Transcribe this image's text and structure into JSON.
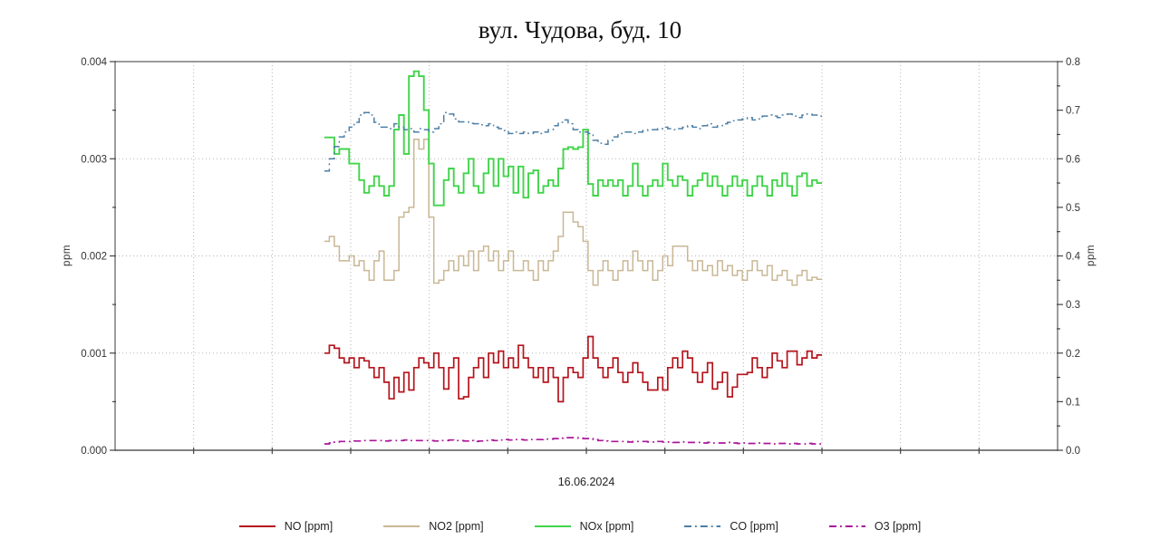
{
  "title": "вул. Чудова, буд. 10",
  "date_label": "16.06.2024",
  "y_axis_left": {
    "label": "ppm",
    "min": 0,
    "max": 0.004,
    "tick_labels": [
      "0.000",
      "0.001",
      "0.002",
      "0.003",
      "0.004"
    ]
  },
  "y_axis_right": {
    "label": "ppm",
    "min": 0,
    "max": 0.8,
    "tick_labels": [
      "0.0",
      "0.1",
      "0.2",
      "0.3",
      "0.4",
      "0.5",
      "0.6",
      "0.7",
      "0.8"
    ]
  },
  "legend": {
    "items": [
      {
        "label": "NO [ppm]"
      },
      {
        "label": "NO2 [ppm]"
      },
      {
        "label": "NOx [ppm]"
      },
      {
        "label": "CO [ppm]"
      },
      {
        "label": "O3 [ppm]"
      }
    ]
  },
  "colors": {
    "no": "#b5141c",
    "no2": "#c9b795",
    "nox": "#41d44a",
    "co": "#4d7fa5",
    "o3": "#ab169b",
    "grid": "#b5b5b5",
    "axis": "#666666",
    "tick_text": "#333333"
  },
  "chart_data": {
    "type": "line",
    "title": "вул. Чудова, буд. 10",
    "x_label": "16.06.2024",
    "grid": "dotted",
    "legend_position": "bottom",
    "x_axis_divisions": 12,
    "x_data_start_frac": 0.222,
    "x_data_end_frac": 0.75,
    "left_axis": {
      "label": "ppm",
      "range": [
        0,
        0.004
      ],
      "gridlines": [
        0.001,
        0.002,
        0.003
      ]
    },
    "right_axis": {
      "label": "ppm",
      "range": [
        0,
        0.8
      ],
      "gridlines": [
        0.2,
        0.4,
        0.6
      ]
    },
    "series": [
      {
        "name": "NO [ppm]",
        "axis": "left",
        "color": "#b5141c",
        "style": "solid",
        "width": 1.7,
        "values": [
          0.001,
          0.00108,
          0.00105,
          0.00095,
          0.0009,
          0.00095,
          0.00085,
          0.00095,
          0.00092,
          0.00085,
          0.00075,
          0.00085,
          0.0007,
          0.00053,
          0.00075,
          0.0006,
          0.0008,
          0.00062,
          0.00085,
          0.00095,
          0.0009,
          0.00085,
          0.001,
          0.00085,
          0.00063,
          0.00085,
          0.00095,
          0.00053,
          0.00055,
          0.00075,
          0.00085,
          0.00095,
          0.00075,
          0.001,
          0.0009,
          0.00102,
          0.00085,
          0.00095,
          0.00085,
          0.00108,
          0.00095,
          0.00085,
          0.00075,
          0.00085,
          0.0007,
          0.00085,
          0.00075,
          0.0005,
          0.00075,
          0.00085,
          0.0008,
          0.00075,
          0.00095,
          0.00117,
          0.00095,
          0.00085,
          0.00075,
          0.00085,
          0.00095,
          0.0008,
          0.0007,
          0.0008,
          0.0009,
          0.0008,
          0.0007,
          0.00062,
          0.00062,
          0.00075,
          0.00062,
          0.00085,
          0.00095,
          0.00085,
          0.00102,
          0.00095,
          0.0008,
          0.0007,
          0.0008,
          0.0009,
          0.00063,
          0.0007,
          0.0008,
          0.00055,
          0.00065,
          0.00078,
          0.00078,
          0.0008,
          0.00095,
          0.00085,
          0.00075,
          0.00085,
          0.001,
          0.00092,
          0.00085,
          0.00102,
          0.00102,
          0.00088,
          0.00095,
          0.00102,
          0.00095,
          0.00098
        ]
      },
      {
        "name": "NO2 [ppm]",
        "axis": "left",
        "color": "#c9b795",
        "style": "solid",
        "width": 1.5,
        "values": [
          0.00215,
          0.0022,
          0.0021,
          0.00195,
          0.00195,
          0.002,
          0.0019,
          0.00195,
          0.00185,
          0.00175,
          0.00195,
          0.00205,
          0.00175,
          0.00175,
          0.00185,
          0.0024,
          0.00245,
          0.0025,
          0.0032,
          0.0031,
          0.0032,
          0.0024,
          0.00172,
          0.00175,
          0.00185,
          0.00195,
          0.00185,
          0.002,
          0.0019,
          0.00205,
          0.00185,
          0.00205,
          0.0021,
          0.00195,
          0.00205,
          0.00185,
          0.00195,
          0.00205,
          0.00185,
          0.00185,
          0.00195,
          0.00185,
          0.00175,
          0.00195,
          0.00185,
          0.00195,
          0.00205,
          0.0022,
          0.00245,
          0.00245,
          0.00235,
          0.0023,
          0.00215,
          0.00185,
          0.0017,
          0.00185,
          0.00195,
          0.00185,
          0.00175,
          0.00185,
          0.00195,
          0.00185,
          0.00205,
          0.00195,
          0.00185,
          0.00195,
          0.00175,
          0.00185,
          0.002,
          0.0019,
          0.0021,
          0.0021,
          0.0021,
          0.00195,
          0.00185,
          0.00195,
          0.00185,
          0.0019,
          0.0018,
          0.00195,
          0.00185,
          0.0019,
          0.0018,
          0.00185,
          0.00175,
          0.00185,
          0.00195,
          0.00185,
          0.0018,
          0.0019,
          0.00175,
          0.0018,
          0.00185,
          0.00175,
          0.0017,
          0.0018,
          0.00185,
          0.00175,
          0.00178,
          0.00176
        ]
      },
      {
        "name": "NOx [ppm]",
        "axis": "left",
        "color": "#41d44a",
        "style": "solid",
        "width": 1.9,
        "values": [
          0.00322,
          0.00322,
          0.00305,
          0.0031,
          0.0031,
          0.00295,
          0.00295,
          0.00278,
          0.00265,
          0.00272,
          0.00282,
          0.00272,
          0.00262,
          0.00272,
          0.0033,
          0.00345,
          0.00305,
          0.00385,
          0.0039,
          0.00385,
          0.0035,
          0.00295,
          0.00252,
          0.00252,
          0.00278,
          0.0029,
          0.00272,
          0.00265,
          0.00285,
          0.003,
          0.00272,
          0.00265,
          0.00285,
          0.003,
          0.00272,
          0.003,
          0.00282,
          0.00292,
          0.00265,
          0.00292,
          0.0026,
          0.00285,
          0.00288,
          0.00265,
          0.00272,
          0.00278,
          0.00272,
          0.0029,
          0.0031,
          0.00312,
          0.0031,
          0.00312,
          0.0033,
          0.00274,
          0.00262,
          0.00278,
          0.00272,
          0.00278,
          0.00272,
          0.00278,
          0.00262,
          0.00272,
          0.00295,
          0.00272,
          0.00262,
          0.00272,
          0.00278,
          0.00272,
          0.00295,
          0.00278,
          0.00272,
          0.00282,
          0.00278,
          0.00262,
          0.00272,
          0.00278,
          0.00285,
          0.00272,
          0.00282,
          0.00272,
          0.00262,
          0.00272,
          0.00282,
          0.00272,
          0.00278,
          0.00262,
          0.00272,
          0.00282,
          0.00272,
          0.00262,
          0.00278,
          0.00272,
          0.00285,
          0.00272,
          0.00262,
          0.00282,
          0.00285,
          0.00272,
          0.00278,
          0.00275
        ]
      },
      {
        "name": "CO [ppm]",
        "axis": "right",
        "color": "#4d7fa5",
        "style": "dashdot",
        "width": 1.5,
        "values": [
          0.575,
          0.6,
          0.625,
          0.645,
          0.655,
          0.665,
          0.675,
          0.69,
          0.695,
          0.69,
          0.675,
          0.665,
          0.665,
          0.662,
          0.672,
          0.665,
          0.66,
          0.662,
          0.655,
          0.662,
          0.66,
          0.655,
          0.662,
          0.672,
          0.695,
          0.692,
          0.682,
          0.676,
          0.676,
          0.673,
          0.672,
          0.67,
          0.668,
          0.672,
          0.665,
          0.662,
          0.658,
          0.652,
          0.655,
          0.652,
          0.655,
          0.652,
          0.655,
          0.652,
          0.655,
          0.66,
          0.668,
          0.675,
          0.68,
          0.672,
          0.66,
          0.655,
          0.655,
          0.652,
          0.638,
          0.632,
          0.63,
          0.638,
          0.645,
          0.652,
          0.655,
          0.655,
          0.652,
          0.655,
          0.658,
          0.66,
          0.66,
          0.662,
          0.665,
          0.662,
          0.66,
          0.662,
          0.665,
          0.668,
          0.665,
          0.662,
          0.668,
          0.672,
          0.665,
          0.668,
          0.672,
          0.675,
          0.678,
          0.68,
          0.682,
          0.685,
          0.68,
          0.682,
          0.688,
          0.69,
          0.688,
          0.685,
          0.69,
          0.692,
          0.688,
          0.685,
          0.69,
          0.692,
          0.69,
          0.688
        ]
      },
      {
        "name": "O3 [ppm]",
        "axis": "right",
        "color": "#ab169b",
        "style": "dashdot",
        "width": 1.7,
        "values": [
          0.013,
          0.015,
          0.017,
          0.018,
          0.018,
          0.018,
          0.019,
          0.019,
          0.02,
          0.02,
          0.02,
          0.02,
          0.019,
          0.02,
          0.02,
          0.02,
          0.021,
          0.02,
          0.02,
          0.02,
          0.02,
          0.02,
          0.019,
          0.02,
          0.02,
          0.021,
          0.02,
          0.02,
          0.019,
          0.02,
          0.018,
          0.019,
          0.02,
          0.021,
          0.02,
          0.021,
          0.022,
          0.021,
          0.022,
          0.022,
          0.021,
          0.022,
          0.022,
          0.022,
          0.023,
          0.023,
          0.024,
          0.025,
          0.026,
          0.026,
          0.026,
          0.025,
          0.024,
          0.024,
          0.022,
          0.02,
          0.019,
          0.018,
          0.018,
          0.018,
          0.018,
          0.017,
          0.018,
          0.018,
          0.018,
          0.017,
          0.017,
          0.018,
          0.017,
          0.017,
          0.016,
          0.016,
          0.017,
          0.016,
          0.016,
          0.016,
          0.015,
          0.016,
          0.015,
          0.015,
          0.015,
          0.016,
          0.015,
          0.014,
          0.015,
          0.014,
          0.014,
          0.015,
          0.014,
          0.014,
          0.013,
          0.014,
          0.014,
          0.013,
          0.014,
          0.013,
          0.013,
          0.014,
          0.013,
          0.013
        ]
      }
    ]
  }
}
